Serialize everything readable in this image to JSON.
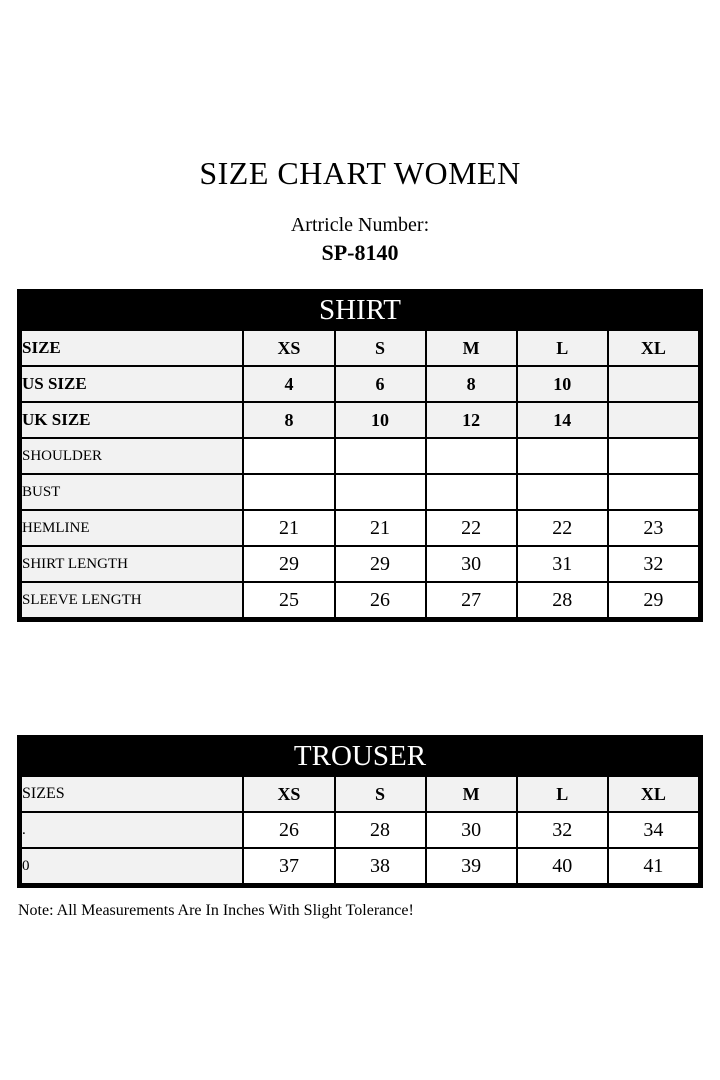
{
  "page": {
    "title": "SIZE CHART WOMEN",
    "article_label": "Artricle Number:",
    "article_number": "SP-8140",
    "note": "Note: All Measurements Are In Inches With Slight Tolerance!"
  },
  "shirt_table": {
    "header": "SHIRT",
    "rows": [
      {
        "kind": "header",
        "label": "SIZE",
        "values": [
          "XS",
          "S",
          "M",
          "L",
          "XL"
        ]
      },
      {
        "kind": "header",
        "label": "US SIZE",
        "values": [
          "4",
          "6",
          "8",
          "10",
          ""
        ]
      },
      {
        "kind": "header",
        "label": "UK SIZE",
        "values": [
          "8",
          "10",
          "12",
          "14",
          ""
        ]
      },
      {
        "kind": "data",
        "label": "SHOULDER",
        "values": [
          "",
          "",
          "",
          "",
          ""
        ]
      },
      {
        "kind": "data",
        "label": "BUST",
        "values": [
          "",
          "",
          "",
          "",
          ""
        ]
      },
      {
        "kind": "data",
        "label": "HEMLINE",
        "values": [
          "21",
          "21",
          "22",
          "22",
          "23"
        ]
      },
      {
        "kind": "data",
        "label": "SHIRT LENGTH",
        "values": [
          "29",
          "29",
          "30",
          "31",
          "32"
        ]
      },
      {
        "kind": "data",
        "label": "SLEEVE LENGTH",
        "values": [
          "25",
          "26",
          "27",
          "28",
          "29"
        ]
      }
    ]
  },
  "trouser_table": {
    "header": "TROUSER",
    "rows": [
      {
        "kind": "sizes",
        "label": "SIZES",
        "values": [
          "XS",
          "S",
          "M",
          "L",
          "XL"
        ]
      },
      {
        "kind": "data",
        "label": ".",
        "values": [
          "26",
          "28",
          "30",
          "32",
          "34"
        ]
      },
      {
        "kind": "data",
        "label": "0",
        "values": [
          "37",
          "38",
          "39",
          "40",
          "41"
        ]
      }
    ]
  }
}
